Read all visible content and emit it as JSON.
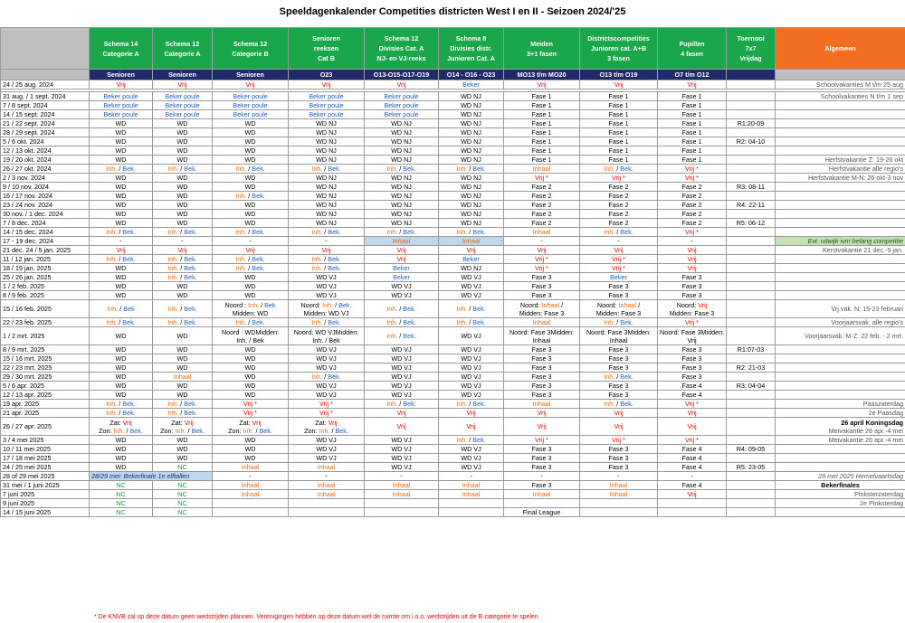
{
  "title": "Speeldagenkalender Competities districten  West I en II - Seizoen 2024/'25",
  "headers": [
    {
      "label": "",
      "style": "gray"
    },
    {
      "label": "Schema 14\nCategorie  A",
      "style": "green"
    },
    {
      "label": "Schema 12\nCategorie A",
      "style": "green"
    },
    {
      "label": "Schema 12\nCategorie B",
      "style": "green"
    },
    {
      "label": "Senioren\nreeksen\nCat B",
      "style": "green"
    },
    {
      "label": "Schema 12\nDivisies Cat. A\nNJ- en VJ-reeks",
      "style": "green"
    },
    {
      "label": "Schema 8\nDivisies distr.\nJunioren Cat. A",
      "style": "green"
    },
    {
      "label": "Meiden\n3+1 fasen",
      "style": "green"
    },
    {
      "label": "Districtscompetities\nJunioren cat. A+B\n3 fasen",
      "style": "green"
    },
    {
      "label": "Pupillen\n4 fasen",
      "style": "green"
    },
    {
      "label": "Toernooi\n7x7\nVrijdag",
      "style": "green"
    },
    {
      "label": "Algemeen",
      "style": "orange"
    }
  ],
  "subheaders": [
    "",
    "Senioren",
    "Senioren",
    "Senioren",
    "O23",
    "O13-O15-O17-O19",
    "O14 - O16 - O23",
    "MO13 t/m MO20",
    "O13 t/m O19",
    "O7 t/m O12",
    "",
    ""
  ],
  "rows": [
    [
      "24 / 25 aug. 2024",
      "R:Vrij",
      "R:Vrij",
      "R:Vrij",
      "R:Vrij",
      "R:Vrij",
      "B:Beker",
      "R:Vrij",
      "R:Vrij",
      "R:Vrij",
      "",
      "G:Schoolvakanties M t/m 25 aug"
    ],
    [
      "sep"
    ],
    [
      "31 aug. / 1 sept. 2024",
      "B:Beker poule",
      "B:Beker poule",
      "B:Beker poule",
      "B:Beker poule",
      "B:Beker poule",
      "WD NJ",
      "Fase 1",
      "Fase 1",
      "Fase 1",
      "",
      "G:Schoolvakanties N t/m 1 sep"
    ],
    [
      "7 / 8 sept. 2024",
      "B:Beker poule",
      "B:Beker poule",
      "B:Beker poule",
      "B:Beker poule",
      "B:Beker poule",
      "WD NJ",
      "Fase 1",
      "Fase 1",
      "Fase 1",
      "",
      ""
    ],
    [
      "14 / 15 sept. 2024",
      "B:Beker poule",
      "B:Beker poule",
      "B:Beker poule",
      "B:Beker poule",
      "B:Beker poule",
      "WD NJ",
      "Fase 1",
      "Fase 1",
      "Fase 1",
      "",
      ""
    ],
    [
      "21 / 22 sept. 2024",
      "WD",
      "WD",
      "WD",
      "WD NJ",
      "WD NJ",
      "WD NJ",
      "Fase 1",
      "Fase 1",
      "Fase 1",
      "R1:20-09",
      ""
    ],
    [
      "28 / 29 sept. 2024",
      "WD",
      "WD",
      "WD",
      "WD NJ",
      "WD NJ",
      "WD NJ",
      "Fase 1",
      "Fase 1",
      "Fase 1",
      "",
      ""
    ],
    [
      "5 / 6 okt. 2024",
      "WD",
      "WD",
      "WD",
      "WD NJ",
      "WD NJ",
      "WD NJ",
      "Fase 1",
      "Fase 1",
      "Fase 1",
      "R2: 04-10",
      ""
    ],
    [
      "12 / 13 okt. 2024",
      "WD",
      "WD",
      "WD",
      "WD NJ",
      "WD NJ",
      "WD NJ",
      "Fase 1",
      "Fase 1",
      "Fase 1",
      "",
      ""
    ],
    [
      "19 / 20 okt. 2024",
      "WD",
      "WD",
      "WD",
      "WD NJ",
      "WD NJ",
      "WD NJ",
      "Fase 1",
      "Fase 1",
      "Fase 1",
      "",
      "G:Herfstvakantie Z: 19-26 okt"
    ],
    [
      "26 / 27 okt. 2024",
      "IB",
      "IB",
      "IB",
      "IB",
      "IB",
      "IB",
      "O:Inhaal",
      "IB",
      "R:Vrij *",
      "",
      "G:Herfstvakantie alle regio's"
    ],
    [
      "2 / 3 nov. 2024",
      "WD",
      "WD",
      "WD",
      "WD NJ",
      "WD NJ",
      "WD NJ",
      "R:Vrij *",
      "R:Vrij *",
      "R:Vrij *",
      "",
      "G:Herfstvakantie M-N: 26 okt-3 nov"
    ],
    [
      "9 / 10 nov. 2024",
      "WD",
      "WD",
      "WD",
      "WD NJ",
      "WD NJ",
      "WD NJ",
      "Fase 2",
      "Fase 2",
      "Fase 2",
      "R3: 08-11",
      ""
    ],
    [
      "16 / 17 nov. 2024",
      "WD",
      "WD",
      "IB",
      "WD NJ",
      "WD NJ",
      "WD NJ",
      "Fase 2",
      "Fase 2",
      "Fase 2",
      "",
      ""
    ],
    [
      "23 / 24 nov. 2024",
      "WD",
      "WD",
      "WD",
      "WD NJ",
      "WD NJ",
      "WD NJ",
      "Fase 2",
      "Fase 2",
      "Fase 2",
      "R4: 22-11",
      ""
    ],
    [
      "30 nov. / 1 dec. 2024",
      "WD",
      "WD",
      "WD",
      "WD NJ",
      "WD NJ",
      "WD NJ",
      "Fase 2",
      "Fase 2",
      "Fase 2",
      "",
      ""
    ],
    [
      "7 / 8 dec. 2024",
      "WD",
      "WD",
      "WD",
      "WD NJ",
      "WD NJ",
      "WD NJ",
      "Fase 2",
      "Fase 2",
      "Fase 2",
      "R5: 06-12",
      ""
    ],
    [
      "14 / 15 dec. 2024",
      "IB",
      "IB",
      "IB",
      "IB",
      "IB",
      "IB",
      "O:Inhaal",
      "IB",
      "R:Vrij *",
      "",
      ""
    ],
    [
      "17 - 19 dec. 2024",
      "-",
      "-",
      "-",
      "-",
      "OIH:Inhaal",
      "OIH:Inhaal",
      "-",
      "-",
      "-",
      "",
      "GH:Evt. uitwijk ivm belang competitie"
    ],
    [
      "21 dec. 24 / 5 jan. 2025",
      "R:Vrij",
      "R:Vrij",
      "R:Vrij",
      "R:Vrij",
      "R:Vrij",
      "R:Vrij",
      "R:Vrij",
      "R:Vrij",
      "R:Vrij",
      "",
      "G:Kerstvakantie 21 dec.-5 jan."
    ],
    [
      "11 / 12 jan. 2025",
      "IB",
      "IB",
      "IB",
      "IB",
      "R:Vrij",
      "B:Beker",
      "R:Vrij *",
      "R:Vrij *",
      "R:Vrij",
      "",
      ""
    ],
    [
      "18 / 19 jan. 2025",
      "WD",
      "IB",
      "IB",
      "IB",
      "B:Beker",
      "WD NJ",
      "R:Vrij *",
      "R:Vrij *",
      "R:Vrij",
      "",
      ""
    ],
    [
      "25 / 26 jan. 2025",
      "WD",
      "IB",
      "WD",
      "WD VJ",
      "B:Beker",
      "WD VJ",
      "Fase 3",
      "B:Beker",
      "Fase 3",
      "",
      ""
    ],
    [
      "1 / 2 feb. 2025",
      "WD",
      "WD",
      "WD",
      "WD VJ",
      "WD VJ",
      "WD VJ",
      "Fase 3",
      "Fase 3",
      "Fase 3",
      "",
      ""
    ],
    [
      "8 / 9 feb. 2025",
      "WD",
      "WD",
      "WD",
      "WD VJ",
      "WD VJ",
      "WD VJ",
      "Fase 3",
      "Fase 3",
      "Fase 3",
      "",
      ""
    ],
    [
      "T2:15 / 16 feb. 2025",
      "IB2",
      "IB",
      "NM:Noord : |Inh. / Bek|Midden: WD",
      "NM:Noord: |Inh. / Bek.|Midden: WD VJ",
      "IB",
      "IB",
      "NM:Noord: |Inhaal|Midden: Fase 3",
      "NM:Noord: |Inhaal|Midden: Fase 3",
      "NM:Noord: |Vrij|Midden: Fase 3",
      "",
      "G:Vrj.vak. N: 15-23 februari"
    ],
    [
      "22 / 23 feb. 2025",
      "IB",
      "IB",
      "IB",
      "IB",
      "IB",
      "IB",
      "O:Inhaal",
      "IB",
      "R:Vrij *",
      "",
      "G:Voorjaarsvak. alle regio's"
    ],
    [
      "T2:1 / 2 mrt. 2025",
      "WD",
      "WD",
      "NM:Noord : WD|Midden: |Inh. / Bek",
      "NM:Noord: WD VJ|Midden: |Inh. / Bek",
      "IB",
      "WD VJ",
      "NM:Noord: Fase 3|Midden: |Inhaal",
      "NM:Noord: Fase 3|Midden: |Inhaal",
      "NM:Noord: Fase 3|Midden: |Vrij",
      "",
      "G:Voorjaarsvak. M-Z: 22 feb. - 2 mrt."
    ],
    [
      "8 / 9 mrt. 2025",
      "WD",
      "WD",
      "WD",
      "WD VJ",
      "WD VJ",
      "WD VJ",
      "Fase 3",
      "Fase 3",
      "Fase 3",
      "R1:07-03",
      ""
    ],
    [
      "15 / 16 mrt. 2025",
      "WD",
      "WD",
      "WD",
      "WD VJ",
      "WD VJ",
      "WD VJ",
      "Fase 3",
      "Fase 3",
      "Fase 3",
      "",
      ""
    ],
    [
      "22 / 23 mrt. 2025",
      "WD",
      "WD",
      "WD",
      "WD VJ",
      "WD VJ",
      "WD VJ",
      "Fase 3",
      "Fase 3",
      "Fase 3",
      "R2: 21-03",
      ""
    ],
    [
      "29 / 30 mrt. 2025",
      "WD",
      "O:Inhaal",
      "WD",
      "IB",
      "WD VJ",
      "WD VJ",
      "Fase 3",
      "IB",
      "Fase 3",
      "",
      ""
    ],
    [
      "5 / 6 apr. 2025",
      "WD",
      "WD",
      "WD",
      "WD VJ",
      "WD VJ",
      "WD VJ",
      "Fase 3",
      "Fase 3",
      "Fase 4",
      "R3: 04-04",
      ""
    ],
    [
      "12 / 13 apr. 2025",
      "WD",
      "WD",
      "WD",
      "WD VJ",
      "WD VJ",
      "WD VJ",
      "Fase 3",
      "Fase 3",
      "Fase 4",
      "",
      ""
    ],
    [
      "19 apr. 2025",
      "IB",
      "IB",
      "R:Vrij *",
      "R:Vrij *",
      "IB",
      "IB",
      "O:Inhaal",
      "IB",
      "R:Vrij *",
      "",
      "G:Paaszaterdag"
    ],
    [
      "21 apr. 2025",
      "IB",
      "IB",
      "R:Vrij *",
      "R:Vrij *",
      "R:Vrij",
      "R:Vrij",
      "R:Vrij",
      "R:Vrij",
      "R:Vrij",
      "",
      "G:2e Paasdag"
    ],
    [
      "T2:26 / 27 apr. 2025",
      "ZZ:Zat: |Vrij|Zon: |Inh. / Bek.",
      "ZZ:Zat: |Vrij|Zon: |Inh. / Bek.",
      "ZZ:Zat: |Vrij|Zon: |Inh. / Bek.",
      "ZZ:Zat: |Vrij|Zon: |Inh. / Bek.",
      "R:Vrij",
      "R:Vrij",
      "R:Vrij",
      "R:Vrij",
      "R:Vrij",
      "",
      "KD:26 april Koningsdag|Meivakantie 26 apr.-4 mei"
    ],
    [
      "3 / 4 mei 2025",
      "WD",
      "WD",
      "WD",
      "WD VJ",
      "WD VJ",
      "IB",
      "R:Vrij *",
      "R:Vrij *",
      "R:Vrij *",
      "",
      "G:Meivakantie 26 apr.-4 mei"
    ],
    [
      "10 / 11 mei 2025",
      "WD",
      "WD",
      "WD",
      "WD VJ",
      "WD VJ",
      "WD VJ",
      "Fase 3",
      "Fase 3",
      "Fase 4",
      "R4: 09-05",
      ""
    ],
    [
      "17 / 18 mei 2025",
      "WD",
      "WD",
      "WD",
      "WD VJ",
      "WD VJ",
      "WD VJ",
      "Fase 3",
      "Fase 3",
      "Fase 4",
      "",
      ""
    ],
    [
      "24 / 25 mei 2025",
      "WD",
      "N:NC",
      "O:Inhaal",
      "O:Inhaal",
      "WD VJ",
      "WD VJ",
      "Fase 3",
      "Fase 3",
      "Fase 4",
      "R5: 23-05",
      ""
    ],
    [
      "BF:28 of 29 mei 2025",
      "BFH:28/29 mei: Bekerfinale 1e elftallen",
      "",
      "-",
      "-",
      "-",
      "-",
      "-",
      "-",
      "-",
      "",
      "GI:29 mei 2025 Hemelvaartsdag"
    ],
    [
      "31 mei / 1 juni 2025",
      "N:NC",
      "N:NC",
      "O:Inhaal",
      "O:Inhaal",
      "O:Inhaal",
      "O:Inhaal",
      "Fase 3",
      "O:Inhaal",
      "Fase 4",
      "",
      "BB:Bekerfinales"
    ],
    [
      "7 juni 2025",
      "N:NC",
      "N:NC",
      "O:Inhaal",
      "O:Inhaal",
      "O:Inhaal",
      "O:Inhaal",
      "O:Inhaal",
      "O:Inhaal",
      "R:Vrij",
      "",
      "G:Pinksterzaterdag"
    ],
    [
      "9 juni 2025",
      "N:NC",
      "N:NC",
      "",
      "",
      "",
      "",
      "",
      "",
      "",
      "",
      "G:2e Pinksterdag"
    ],
    [
      "14 / 15 juni 2025",
      "N:NC",
      "N:NC",
      "",
      "",
      "",
      "",
      "Final League",
      "",
      "",
      "",
      ""
    ]
  ],
  "footnote": "* De KNVB zal op deze datum geen wedstrijden plannen. Verenigingen hebben op deze datum wel de ruimte om i.o.o. wedstrijden uit de B-categorie te spelen"
}
